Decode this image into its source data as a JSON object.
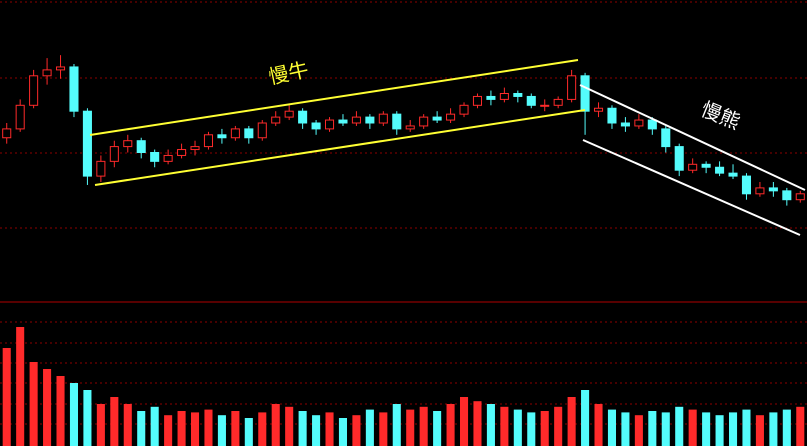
{
  "chart_data": {
    "type": "candlestick",
    "annotations": [
      "慢牛",
      "慢熊"
    ],
    "open": [
      55,
      58,
      66,
      76,
      78,
      79,
      64,
      42,
      47,
      52,
      54,
      50,
      47,
      49,
      51,
      52,
      56,
      55,
      58,
      55,
      60,
      62,
      64,
      60,
      58,
      61,
      60,
      62,
      60,
      63,
      58,
      59,
      62,
      61,
      63,
      66,
      69,
      68,
      70,
      69,
      66,
      66,
      68,
      76,
      64,
      65,
      60,
      59,
      61,
      58,
      52,
      44,
      46,
      45,
      43,
      42,
      36,
      38,
      37,
      34
    ],
    "high": [
      60,
      68,
      78,
      82,
      83,
      80,
      65,
      49,
      54,
      56,
      55,
      51,
      51,
      53,
      54,
      57,
      58,
      59,
      59,
      61,
      64,
      66,
      65,
      61,
      62,
      63,
      64,
      63,
      64,
      64,
      61,
      63,
      64,
      65,
      67,
      70,
      71,
      72,
      71,
      70,
      68,
      69,
      78,
      77,
      67,
      66,
      62,
      63,
      62,
      59,
      53,
      48,
      47,
      47,
      46,
      43,
      40,
      40,
      38,
      37
    ],
    "low": [
      53,
      57,
      65,
      73,
      75,
      62,
      39,
      40,
      45,
      50,
      48,
      45,
      46,
      48,
      49,
      51,
      53,
      54,
      53,
      54,
      59,
      61,
      58,
      56,
      57,
      59,
      59,
      58,
      59,
      56,
      57,
      58,
      60,
      60,
      62,
      65,
      66,
      67,
      67,
      65,
      64,
      65,
      67,
      56,
      62,
      58,
      57,
      58,
      56,
      50,
      42,
      43,
      43,
      42,
      41,
      34,
      35,
      35,
      32,
      33
    ],
    "close": [
      58,
      66,
      76,
      78,
      79,
      64,
      42,
      47,
      52,
      54,
      50,
      47,
      49,
      51,
      52,
      56,
      55,
      58,
      55,
      60,
      62,
      64,
      60,
      58,
      61,
      60,
      62,
      60,
      63,
      58,
      59,
      62,
      61,
      63,
      66,
      69,
      68,
      70,
      69,
      66,
      66,
      68,
      76,
      64,
      65,
      60,
      59,
      61,
      58,
      52,
      44,
      46,
      45,
      43,
      42,
      36,
      38,
      37,
      34,
      36
    ],
    "volume": [
      70,
      85,
      60,
      55,
      50,
      45,
      40,
      30,
      35,
      30,
      25,
      28,
      22,
      25,
      24,
      26,
      22,
      25,
      20,
      24,
      30,
      28,
      25,
      22,
      24,
      20,
      22,
      26,
      24,
      30,
      26,
      28,
      25,
      30,
      35,
      32,
      30,
      28,
      26,
      24,
      25,
      28,
      35,
      40,
      30,
      26,
      24,
      22,
      25,
      24,
      28,
      26,
      24,
      22,
      24,
      26,
      22,
      24,
      26,
      28
    ],
    "ylim": [
      0,
      100
    ],
    "volume_ylim": [
      0,
      100
    ],
    "up_color": "#ff2a2a",
    "down_color": "#54fcfc"
  }
}
